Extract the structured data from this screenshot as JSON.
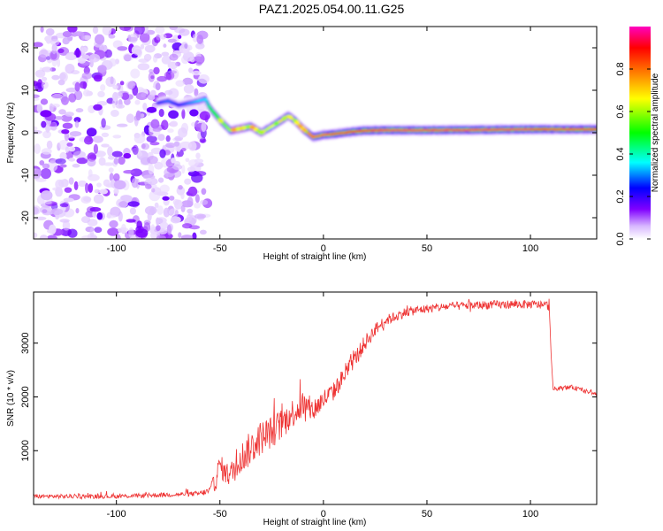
{
  "title": "PAZ1.2025.054.00.11.G25",
  "chart_data": [
    {
      "type": "heatmap",
      "xlabel": "Height of straight line (km)",
      "ylabel": "Frequency (Hz)",
      "xlim": [
        -140,
        132
      ],
      "ylim": [
        -25,
        25
      ],
      "xticks": [
        -100,
        -50,
        0,
        50,
        100
      ],
      "yticks": [
        -20,
        -10,
        0,
        10,
        20
      ],
      "colorbar": {
        "label": "Normalized spectral amplitude",
        "range": [
          0.0,
          1.0
        ],
        "ticks": [
          0.0,
          0.2,
          0.4,
          0.6,
          0.8
        ],
        "colors": [
          "#ffffff",
          "#d8b8ff",
          "#8000ff",
          "#0000ff",
          "#00ffff",
          "#00ff00",
          "#ffff00",
          "#ff8000",
          "#ff0000",
          "#ff00c0"
        ]
      },
      "noise_region_x": [
        -140,
        -56
      ],
      "ridge": {
        "x": [
          -80,
          -75,
          -70,
          -65,
          -60,
          -57,
          -55,
          -50,
          -45,
          -40,
          -35,
          -30,
          -25,
          -20,
          -17,
          -14,
          -10,
          -5,
          0,
          5,
          10,
          15,
          20,
          30,
          50,
          80,
          100,
          110,
          132
        ],
        "freq": [
          7,
          7.5,
          6.5,
          7,
          7.5,
          8,
          6,
          3,
          0.5,
          1,
          1.5,
          0,
          1.5,
          3,
          4,
          3,
          1,
          -1,
          -0.5,
          -0.3,
          0,
          0.3,
          0.5,
          0.6,
          0.6,
          0.7,
          0.8,
          0.8,
          0.8
        ],
        "amplitude": [
          0.25,
          0.3,
          0.25,
          0.3,
          0.35,
          0.35,
          0.45,
          0.55,
          0.6,
          0.6,
          0.65,
          0.6,
          0.65,
          0.7,
          0.7,
          0.7,
          0.75,
          0.8,
          0.8,
          0.85,
          0.85,
          0.9,
          0.92,
          0.95,
          0.95,
          0.95,
          0.95,
          0.85,
          0.85
        ]
      }
    },
    {
      "type": "line",
      "xlabel": "Height of straight line (km)",
      "ylabel": "SNR (10 * v/v)",
      "xlim": [
        -140,
        132
      ],
      "ylim": [
        0,
        3950
      ],
      "xticks": [
        -100,
        -50,
        0,
        50,
        100
      ],
      "yticks": [
        1000,
        2000,
        3000
      ],
      "series": [
        {
          "color": "#ee3333",
          "x": [
            -140,
            -100,
            -60,
            -55,
            -52,
            -50,
            -48,
            -45,
            -40,
            -35,
            -30,
            -25,
            -20,
            -15,
            -10,
            -5,
            0,
            5,
            10,
            15,
            20,
            25,
            30,
            40,
            50,
            60,
            70,
            80,
            90,
            100,
            109,
            110,
            111,
            120,
            132
          ],
          "y": [
            150,
            150,
            200,
            250,
            450,
            750,
            600,
            550,
            850,
            1050,
            1250,
            1350,
            1500,
            1700,
            1850,
            1750,
            1950,
            2100,
            2400,
            2700,
            3000,
            3250,
            3420,
            3580,
            3640,
            3680,
            3700,
            3710,
            3720,
            3720,
            3700,
            2750,
            2150,
            2180,
            2050
          ],
          "noise": [
            80,
            80,
            90,
            150,
            400,
            450,
            400,
            450,
            600,
            650,
            650,
            600,
            600,
            550,
            550,
            450,
            400,
            350,
            350,
            300,
            300,
            250,
            200,
            180,
            160,
            160,
            160,
            160,
            160,
            160,
            160,
            80,
            80,
            80,
            70
          ]
        }
      ]
    }
  ]
}
